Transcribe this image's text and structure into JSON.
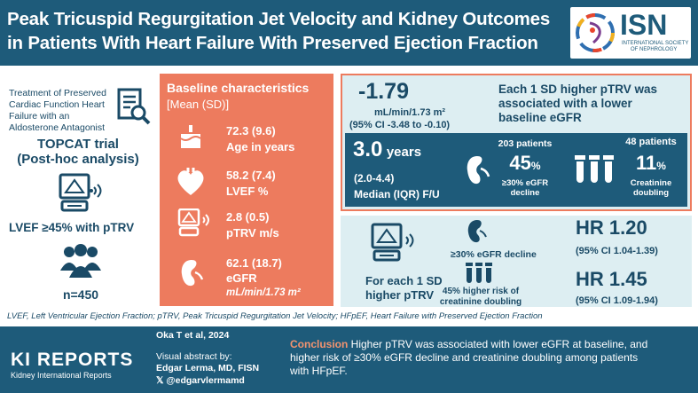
{
  "header": {
    "title_line1": "Peak Tricuspid Regurgitation Jet Velocity and Kidney Outcomes",
    "title_line2": "in Patients With Heart Failure With Preserved Ejection Fraction",
    "logo": {
      "text": "ISN",
      "subtext_line1": "INTERNATIONAL SOCIETY",
      "subtext_line2": "OF NEPHROLOGY"
    }
  },
  "left": {
    "treatment_line1": "Treatment of Preserved",
    "treatment_line2": "Cardiac Function Heart",
    "treatment_line3": "Failure with an",
    "treatment_line4": "Aldosterone Antagonist",
    "trial_line1": "TOPCAT trial",
    "trial_line2": "(Post-hoc analysis)",
    "criteria": "LVEF ≥45%  with pTRV",
    "n": "n=450"
  },
  "baseline": {
    "title": "Baseline characteristics",
    "subtitle": "[Mean (SD)]",
    "items": [
      {
        "value": "72.3 (9.6)",
        "label": "Age in years"
      },
      {
        "value": "58.2 (7.4)",
        "label": "LVEF %"
      },
      {
        "value": "2.8 (0.5)",
        "label": "pTRV m/s"
      },
      {
        "value": "62.1 (18.7)",
        "label": "eGFR",
        "unit": "mL/min/1.73 m²"
      }
    ]
  },
  "top_result": {
    "value": "-1.79",
    "unit": "mL/min/1.73 m²",
    "ci": "(95% CI -3.48 to -0.10)",
    "text_line1": "Each 1 SD higher pTRV was",
    "text_line2": "associated with a lower",
    "text_line3": "baseline eGFR"
  },
  "followup": {
    "years_value": "3.0",
    "years_unit": "years",
    "range": "(2.0-4.4)",
    "label": "Median (IQR) F/U",
    "egfr_patients": "203 patients",
    "egfr_pct": "45",
    "egfr_pct_sign": "%",
    "egfr_label_line1": "≥30% eGFR",
    "egfr_label_line2": "decline",
    "creat_patients": "48 patients",
    "creat_pct": "11",
    "creat_pct_sign": "%",
    "creat_label_line1": "Creatinine",
    "creat_label_line2": "doubling"
  },
  "hr": {
    "per_sd_line1": "For each 1 SD",
    "per_sd_line2": "higher pTRV",
    "egfr_decline": "≥30% eGFR decline",
    "creat_line1": "45% higher risk of",
    "creat_line2": "creatinine doubling",
    "hr1": "HR 1.20",
    "ci1": "(95%  CI 1.04-1.39)",
    "hr2": "HR 1.45",
    "ci2": "(95%  CI 1.09-1.94)"
  },
  "footnote": "LVEF, Left Ventricular Ejection Fraction; pTRV, Peak Tricuspid Regurgitation Jet Velocity; HFpEF, Heart Failure with  Preserved Ejection Fraction",
  "footer": {
    "brand": "KI REPORTS",
    "brand_sub": "Kidney International Reports",
    "citation": "Oka T et al, 2024",
    "abstract_by": "Visual abstract by:",
    "author": "Edgar Lerma, MD, FISN",
    "handle": "@edgarvlermamd",
    "conclusion_label": "Conclusion",
    "conclusion_line1": " Higher pTRV was associated with lower eGFR at baseline, and",
    "conclusion_line2": "higher risk of ≥30% eGFR decline and creatinine doubling  among patients",
    "conclusion_line3": "with HFpEF."
  },
  "colors": {
    "navy": "#1e5b7a",
    "coral": "#ed7b5e",
    "light": "#ddeef2"
  }
}
